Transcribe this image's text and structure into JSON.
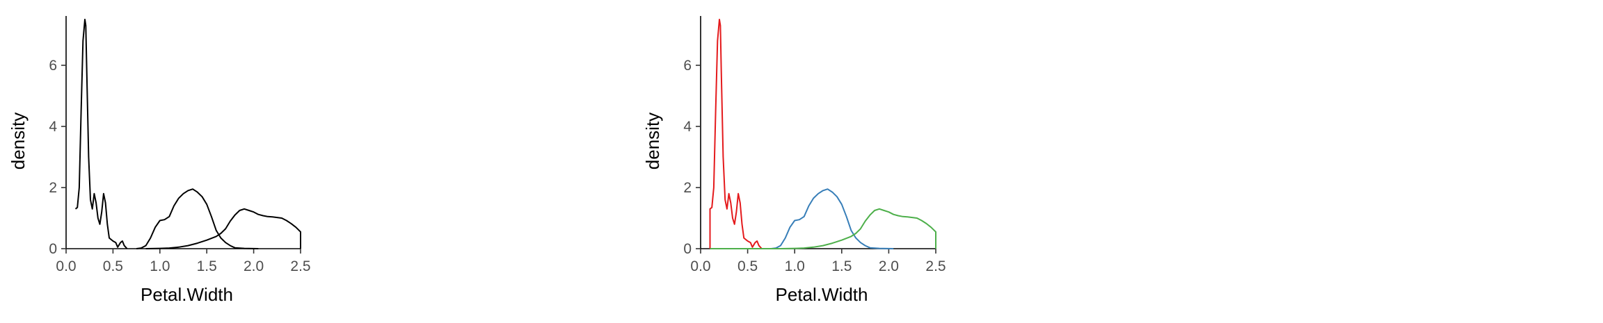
{
  "chart_data": [
    {
      "type": "line",
      "title": "",
      "xlabel": "Petal.Width",
      "ylabel": "density",
      "xlim": [
        0.0,
        2.5
      ],
      "ylim": [
        0,
        7.5
      ],
      "xticks": [
        "0.0",
        "0.5",
        "1.0",
        "1.5",
        "2.0",
        "2.5"
      ],
      "yticks": [
        "0",
        "2",
        "4",
        "6"
      ],
      "grid": false,
      "legend": "none",
      "series": [
        {
          "color": "#000000",
          "points": [
            [
              0.1,
              1.3
            ],
            [
              0.12,
              1.35
            ],
            [
              0.14,
              2.0
            ],
            [
              0.16,
              4.5
            ],
            [
              0.18,
              6.8
            ],
            [
              0.2,
              7.5
            ],
            [
              0.21,
              7.3
            ],
            [
              0.22,
              5.8
            ],
            [
              0.24,
              3.0
            ],
            [
              0.26,
              1.6
            ],
            [
              0.28,
              1.3
            ],
            [
              0.3,
              1.8
            ],
            [
              0.32,
              1.5
            ],
            [
              0.34,
              1.0
            ],
            [
              0.36,
              0.8
            ],
            [
              0.38,
              1.2
            ],
            [
              0.4,
              1.8
            ],
            [
              0.42,
              1.5
            ],
            [
              0.44,
              0.8
            ],
            [
              0.46,
              0.35
            ],
            [
              0.5,
              0.25
            ],
            [
              0.53,
              0.2
            ],
            [
              0.55,
              0.05
            ],
            [
              0.58,
              0.2
            ],
            [
              0.6,
              0.25
            ],
            [
              0.62,
              0.1
            ],
            [
              0.65,
              0.0
            ]
          ]
        },
        {
          "color": "#000000",
          "points": [
            [
              0.75,
              0.0
            ],
            [
              0.8,
              0.02
            ],
            [
              0.85,
              0.1
            ],
            [
              0.9,
              0.35
            ],
            [
              0.95,
              0.7
            ],
            [
              1.0,
              0.92
            ],
            [
              1.05,
              0.95
            ],
            [
              1.1,
              1.05
            ],
            [
              1.15,
              1.4
            ],
            [
              1.2,
              1.65
            ],
            [
              1.25,
              1.8
            ],
            [
              1.3,
              1.9
            ],
            [
              1.35,
              1.95
            ],
            [
              1.4,
              1.85
            ],
            [
              1.45,
              1.7
            ],
            [
              1.5,
              1.45
            ],
            [
              1.55,
              1.05
            ],
            [
              1.6,
              0.6
            ],
            [
              1.65,
              0.35
            ],
            [
              1.7,
              0.2
            ],
            [
              1.75,
              0.1
            ],
            [
              1.8,
              0.03
            ],
            [
              1.9,
              0.01
            ],
            [
              2.05,
              0.0
            ]
          ]
        },
        {
          "color": "#000000",
          "points": [
            [
              0.85,
              0.0
            ],
            [
              1.0,
              0.01
            ],
            [
              1.1,
              0.02
            ],
            [
              1.2,
              0.05
            ],
            [
              1.3,
              0.1
            ],
            [
              1.4,
              0.18
            ],
            [
              1.5,
              0.28
            ],
            [
              1.6,
              0.4
            ],
            [
              1.65,
              0.5
            ],
            [
              1.7,
              0.65
            ],
            [
              1.75,
              0.9
            ],
            [
              1.8,
              1.1
            ],
            [
              1.85,
              1.25
            ],
            [
              1.9,
              1.3
            ],
            [
              1.95,
              1.25
            ],
            [
              2.0,
              1.2
            ],
            [
              2.05,
              1.12
            ],
            [
              2.1,
              1.08
            ],
            [
              2.15,
              1.05
            ],
            [
              2.2,
              1.04
            ],
            [
              2.25,
              1.02
            ],
            [
              2.3,
              1.0
            ],
            [
              2.35,
              0.92
            ],
            [
              2.4,
              0.82
            ],
            [
              2.45,
              0.7
            ],
            [
              2.5,
              0.55
            ],
            [
              2.5,
              0.0
            ]
          ]
        }
      ]
    },
    {
      "type": "line",
      "title": "",
      "xlabel": "Petal.Width",
      "ylabel": "density",
      "xlim": [
        0.0,
        2.5
      ],
      "ylim": [
        0,
        7.5
      ],
      "xticks": [
        "0.0",
        "0.5",
        "1.0",
        "1.5",
        "2.0",
        "2.5"
      ],
      "yticks": [
        "0",
        "2",
        "4",
        "6"
      ],
      "grid": false,
      "legend": "none",
      "series": [
        {
          "color": "#e41a1c",
          "points": [
            [
              0.1,
              0.0
            ],
            [
              0.1,
              1.3
            ],
            [
              0.12,
              1.35
            ],
            [
              0.14,
              2.0
            ],
            [
              0.16,
              4.5
            ],
            [
              0.18,
              6.8
            ],
            [
              0.2,
              7.5
            ],
            [
              0.21,
              7.3
            ],
            [
              0.22,
              5.8
            ],
            [
              0.24,
              3.0
            ],
            [
              0.26,
              1.6
            ],
            [
              0.28,
              1.3
            ],
            [
              0.3,
              1.8
            ],
            [
              0.32,
              1.5
            ],
            [
              0.34,
              1.0
            ],
            [
              0.36,
              0.8
            ],
            [
              0.38,
              1.2
            ],
            [
              0.4,
              1.8
            ],
            [
              0.42,
              1.5
            ],
            [
              0.44,
              0.8
            ],
            [
              0.46,
              0.35
            ],
            [
              0.5,
              0.25
            ],
            [
              0.53,
              0.2
            ],
            [
              0.55,
              0.05
            ],
            [
              0.58,
              0.2
            ],
            [
              0.6,
              0.25
            ],
            [
              0.62,
              0.1
            ],
            [
              0.65,
              0.0
            ]
          ]
        },
        {
          "color": "#377eb8",
          "points": [
            [
              0.75,
              0.0
            ],
            [
              0.8,
              0.02
            ],
            [
              0.85,
              0.1
            ],
            [
              0.9,
              0.35
            ],
            [
              0.95,
              0.7
            ],
            [
              1.0,
              0.92
            ],
            [
              1.05,
              0.95
            ],
            [
              1.1,
              1.05
            ],
            [
              1.15,
              1.4
            ],
            [
              1.2,
              1.65
            ],
            [
              1.25,
              1.8
            ],
            [
              1.3,
              1.9
            ],
            [
              1.35,
              1.95
            ],
            [
              1.4,
              1.85
            ],
            [
              1.45,
              1.7
            ],
            [
              1.5,
              1.45
            ],
            [
              1.55,
              1.05
            ],
            [
              1.6,
              0.6
            ],
            [
              1.65,
              0.35
            ],
            [
              1.7,
              0.2
            ],
            [
              1.75,
              0.1
            ],
            [
              1.8,
              0.03
            ],
            [
              1.9,
              0.01
            ],
            [
              2.05,
              0.0
            ]
          ]
        },
        {
          "color": "#4daf4a",
          "points": [
            [
              0.1,
              0.0
            ],
            [
              0.85,
              0.0
            ],
            [
              1.0,
              0.01
            ],
            [
              1.1,
              0.02
            ],
            [
              1.2,
              0.05
            ],
            [
              1.3,
              0.1
            ],
            [
              1.4,
              0.18
            ],
            [
              1.5,
              0.28
            ],
            [
              1.6,
              0.4
            ],
            [
              1.65,
              0.5
            ],
            [
              1.7,
              0.65
            ],
            [
              1.75,
              0.9
            ],
            [
              1.8,
              1.1
            ],
            [
              1.85,
              1.25
            ],
            [
              1.9,
              1.3
            ],
            [
              1.95,
              1.25
            ],
            [
              2.0,
              1.2
            ],
            [
              2.05,
              1.12
            ],
            [
              2.1,
              1.08
            ],
            [
              2.15,
              1.05
            ],
            [
              2.2,
              1.04
            ],
            [
              2.25,
              1.02
            ],
            [
              2.3,
              1.0
            ],
            [
              2.35,
              0.92
            ],
            [
              2.4,
              0.82
            ],
            [
              2.45,
              0.7
            ],
            [
              2.5,
              0.55
            ],
            [
              2.5,
              0.0
            ]
          ]
        }
      ]
    }
  ]
}
